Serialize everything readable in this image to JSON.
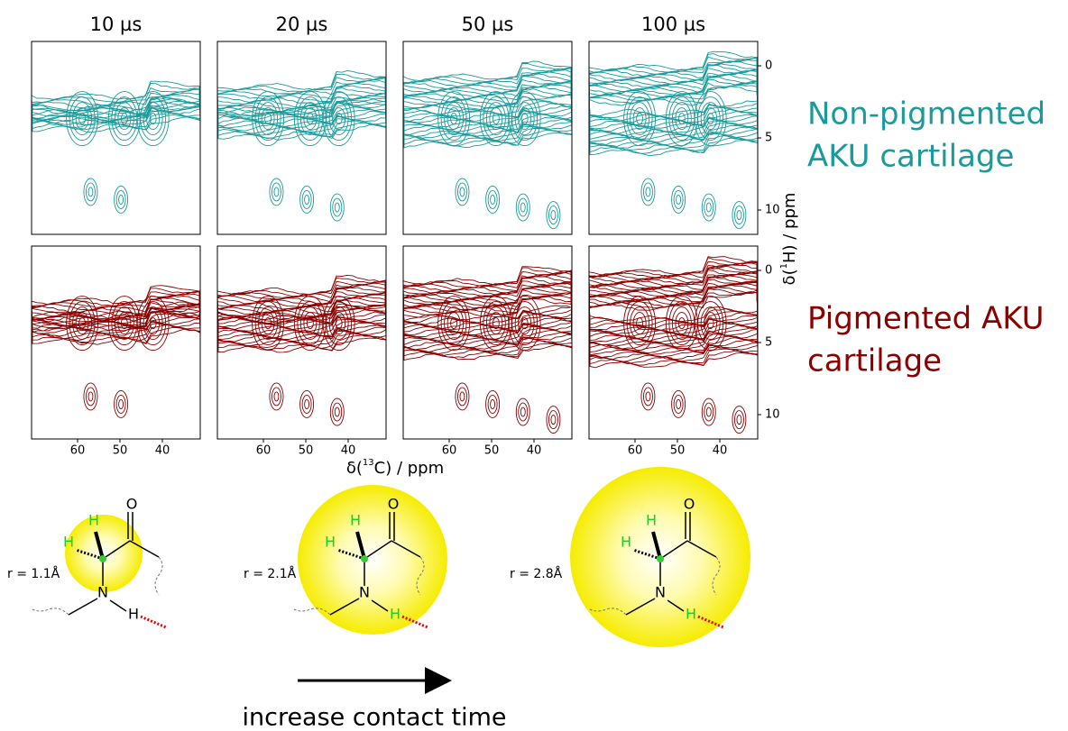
{
  "columns": [
    "10 µs",
    "20 µs",
    "50 µs",
    "100 µs"
  ],
  "rows": [
    {
      "label_lines": [
        "Non-pigmented",
        "AKU cartilage"
      ]
    },
    {
      "label_lines": [
        "Pigmented AKU",
        "cartilage"
      ]
    }
  ],
  "x_axis": {
    "label": {
      "prefix": "δ(",
      "sup": "13",
      "suffix": "C) / ppm"
    },
    "ticks": [
      "60",
      "50",
      "40"
    ]
  },
  "y_axis": {
    "label": {
      "prefix": "δ(",
      "sup": "1",
      "suffix": "H) / ppm"
    },
    "ticks": [
      "0",
      "5",
      "10"
    ]
  },
  "molecules": [
    {
      "radius_label": "r = 1.1Å",
      "atoms": [
        "O",
        "H",
        "H",
        "N",
        "H"
      ]
    },
    {
      "radius_label": "r = 2.1Å",
      "atoms": [
        "O",
        "H",
        "H",
        "N",
        "H"
      ]
    },
    {
      "radius_label": "r = 2.8Å",
      "atoms": [
        "O",
        "H",
        "H",
        "N",
        "H"
      ]
    }
  ],
  "arrow_label": "increase contact time"
}
